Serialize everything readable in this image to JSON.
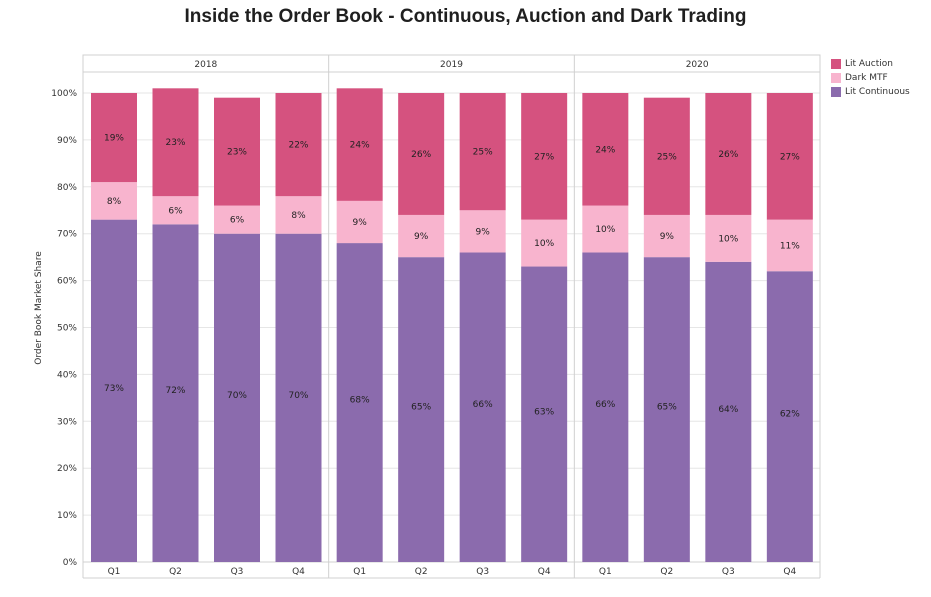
{
  "title": "Inside the Order Book - Continuous, Auction and Dark Trading",
  "chart_data": {
    "type": "bar",
    "stacked": true,
    "ylabel": "Order Book Market Share",
    "xlabel": "",
    "ylim": [
      0,
      100
    ],
    "yticks": [
      "0%",
      "10%",
      "20%",
      "30%",
      "40%",
      "50%",
      "60%",
      "70%",
      "80%",
      "90%",
      "100%"
    ],
    "groups": [
      "2018",
      "2019",
      "2020"
    ],
    "categories": [
      "Q1",
      "Q2",
      "Q3",
      "Q4"
    ],
    "series": [
      {
        "name": "Lit Continuous",
        "color": "#8B6BAD",
        "values": [
          [
            73,
            72,
            70,
            70
          ],
          [
            68,
            65,
            66,
            63
          ],
          [
            66,
            65,
            64,
            62
          ]
        ]
      },
      {
        "name": "Dark MTF",
        "color": "#F8B4CE",
        "values": [
          [
            8,
            6,
            6,
            8
          ],
          [
            9,
            9,
            9,
            10
          ],
          [
            10,
            9,
            10,
            11
          ]
        ]
      },
      {
        "name": "Lit Auction",
        "color": "#D5527F",
        "values": [
          [
            19,
            23,
            23,
            22
          ],
          [
            24,
            26,
            25,
            27
          ],
          [
            24,
            25,
            26,
            27
          ]
        ]
      }
    ],
    "legend_order": [
      "Lit Auction",
      "Dark MTF",
      "Lit Continuous"
    ],
    "legend_position": "top-right",
    "grid": true
  }
}
